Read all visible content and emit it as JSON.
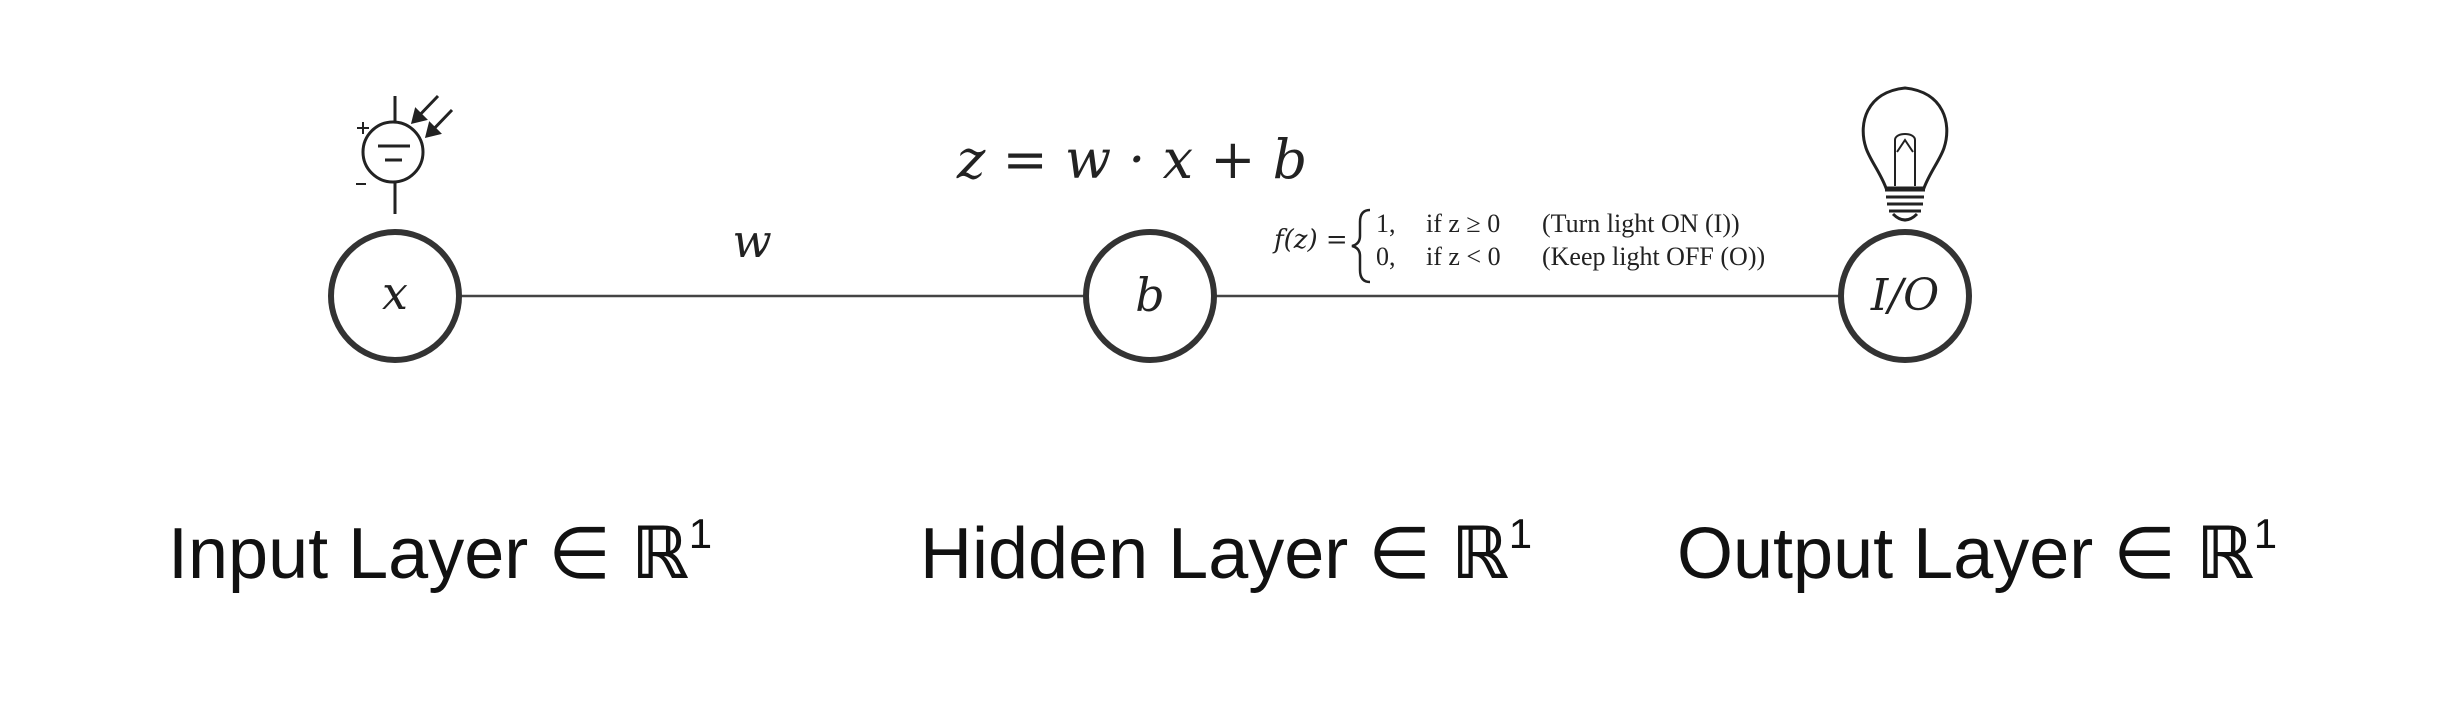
{
  "equation": "z = w · x + b",
  "weight_label": "w",
  "nodes": {
    "input": "x",
    "hidden": "b",
    "output": "I/O"
  },
  "activation": {
    "lhs": "f(z) =",
    "case_on": {
      "value": "1,",
      "condition": "if z ≥ 0",
      "note": "(Turn light ON (I))"
    },
    "case_off": {
      "value": "0,",
      "condition": "if z < 0",
      "note": "(Keep light OFF (O))"
    }
  },
  "layers": {
    "input": {
      "name": "Input Layer ∈ ",
      "set": "ℝ",
      "exp": "1"
    },
    "hidden": {
      "name": "Hidden Layer ∈ ",
      "set": "ℝ",
      "exp": "1"
    },
    "output": {
      "name": "Output Layer ∈ ",
      "set": "ℝ",
      "exp": "1"
    }
  },
  "icons": {
    "input_source": "photocell-source-icon",
    "output_bulb": "light-bulb-icon"
  },
  "colors": {
    "node_stroke": "#333333",
    "text": "#222222"
  }
}
